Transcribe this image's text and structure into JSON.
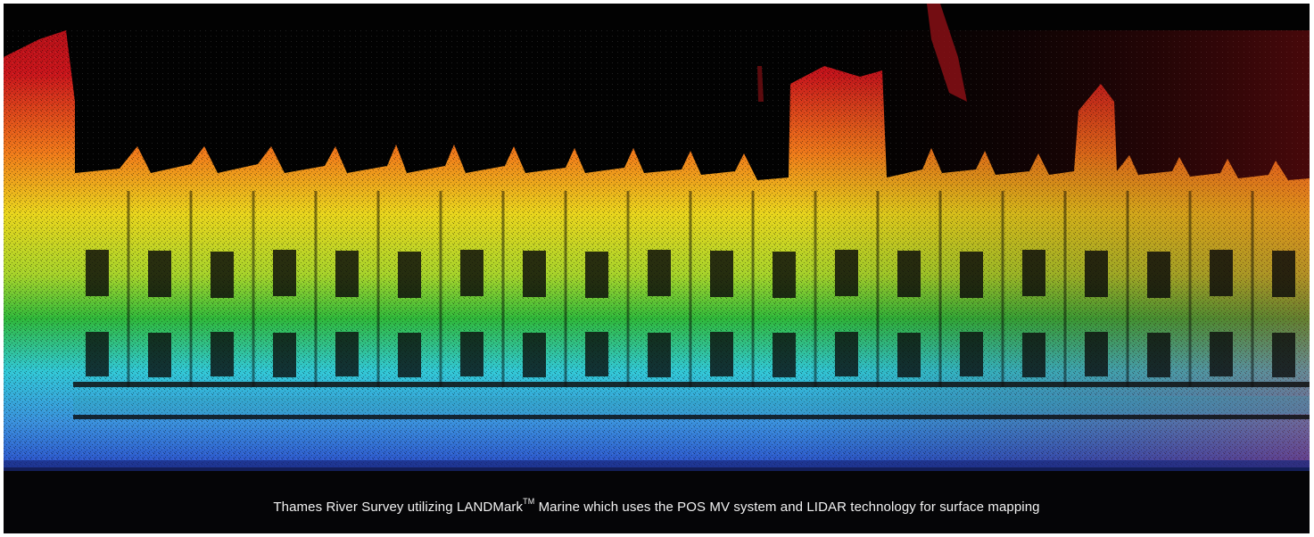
{
  "caption": {
    "prefix": "Thames River Survey utilizing LANDMark",
    "superscript": "TM",
    "suffix": " Marine which uses the POS MV system and LIDAR technology for surface mapping"
  },
  "image": {
    "subject": "lidar-point-cloud-building-facade",
    "colors": {
      "background": "#020202",
      "top": "#c8151b",
      "upper": "#f07a1a",
      "middle": "#e9e21c",
      "green": "#2fb83a",
      "cyan": "#31c7d6",
      "blue": "#2a4fc9",
      "ground": "#1a1f3a"
    }
  }
}
